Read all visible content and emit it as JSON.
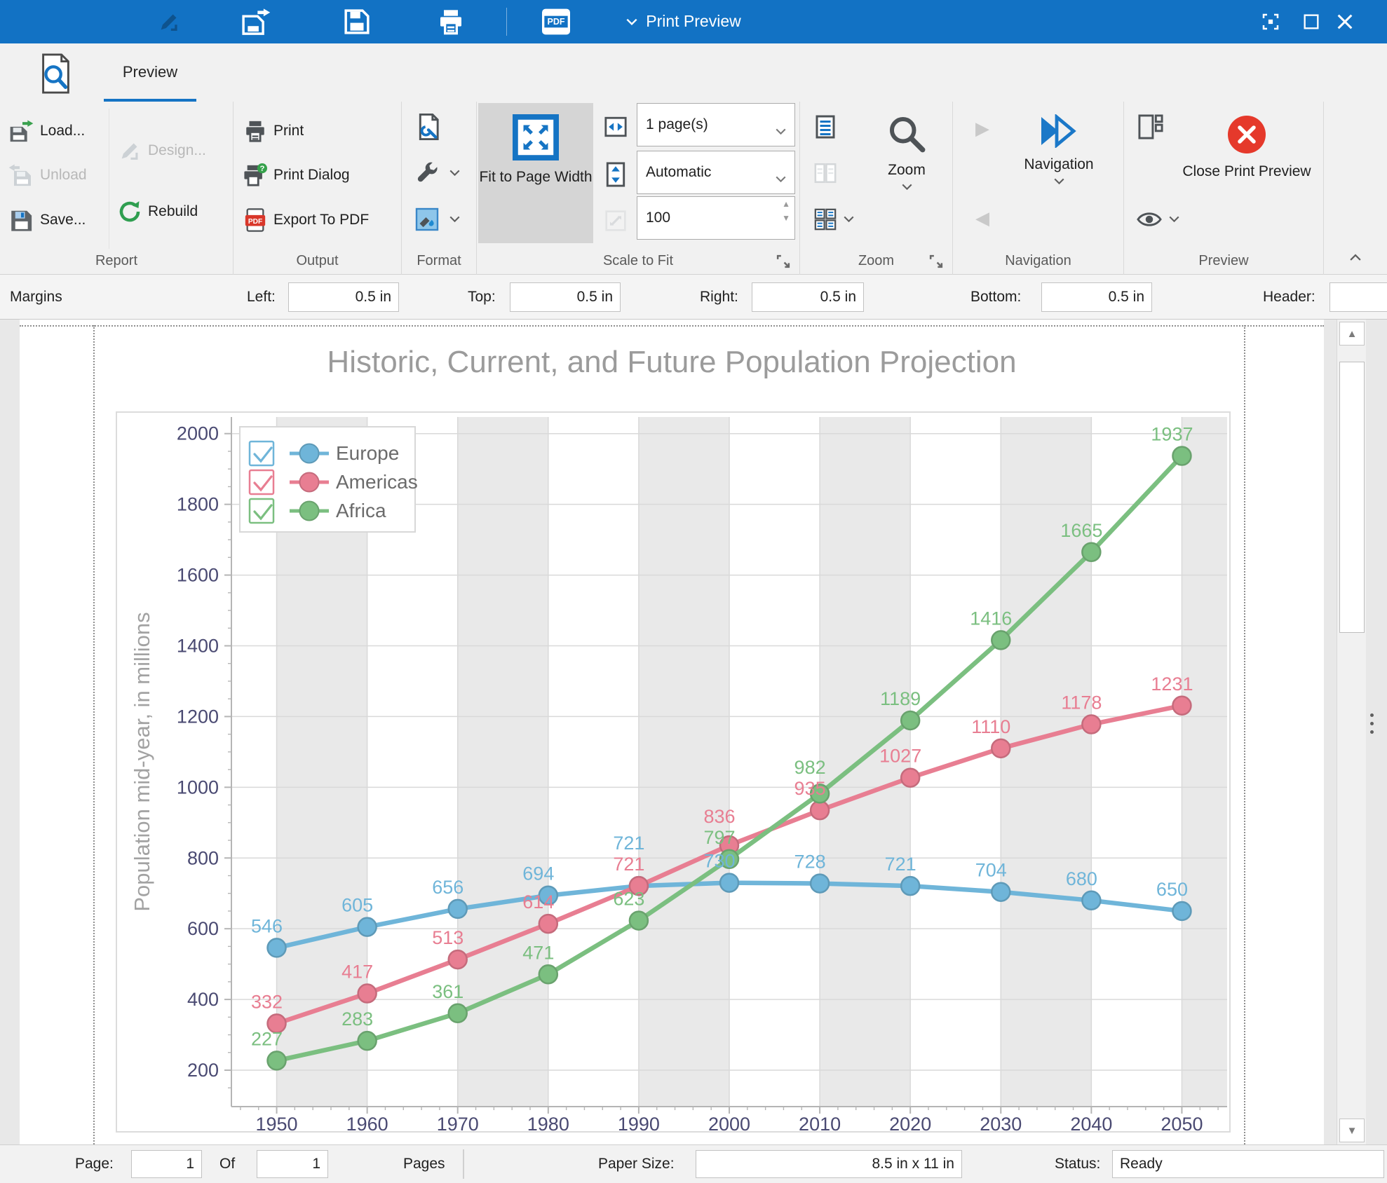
{
  "titlebar": {
    "title": "Print Preview"
  },
  "tabs": {
    "preview": "Preview"
  },
  "ribbon": {
    "report": {
      "label": "Report",
      "load": "Load...",
      "unload": "Unload",
      "save": "Save...",
      "design": "Design...",
      "rebuild": "Rebuild"
    },
    "output": {
      "label": "Output",
      "print": "Print",
      "print_dialog": "Print Dialog",
      "export_pdf": "Export To PDF"
    },
    "format": {
      "label": "Format"
    },
    "scale_to_fit": {
      "label": "Scale to Fit",
      "fit_button": "Fit to Page Width",
      "pages_value": "1 page(s)",
      "height_value": "Automatic",
      "zoom_value": "100"
    },
    "zoom": {
      "label": "Zoom",
      "zoom_button": "Zoom"
    },
    "navigation": {
      "label": "Navigation",
      "nav_button": "Navigation"
    },
    "preview": {
      "label": "Preview",
      "close_button": "Close Print Preview"
    }
  },
  "margins_bar": {
    "title": "Margins",
    "left_label": "Left:",
    "left_value": "0.5 in",
    "top_label": "Top:",
    "top_value": "0.5 in",
    "right_label": "Right:",
    "right_value": "0.5 in",
    "bottom_label": "Bottom:",
    "bottom_value": "0.5 in",
    "header_label": "Header:"
  },
  "status_bar": {
    "page_label": "Page:",
    "page_value": "1",
    "of_label": "Of",
    "of_value": "1",
    "pages_label": "Pages",
    "paper_label": "Paper Size:",
    "paper_value": "8.5 in x 11 in",
    "status_label": "Status:",
    "status_value": "Ready"
  },
  "icons": {
    "pdf_label": "PDF",
    "spin_up": "▲",
    "spin_down": "▼",
    "scroll_up": "▲",
    "scroll_down": "▼",
    "nav_next": "▶",
    "nav_prev": "◀"
  },
  "colors": {
    "titlebar_blue": "#1272c4",
    "accent_blue": "#1574c4",
    "close_red": "#e5392b",
    "active_button_bg": "#d5d5d5"
  },
  "chart_data": {
    "type": "line",
    "title": "Historic, Current, and Future Population Projection",
    "xlabel": "",
    "ylabel": "Population mid-year, in millions",
    "x": [
      1950,
      1960,
      1970,
      1980,
      1990,
      2000,
      2010,
      2020,
      2030,
      2040,
      2050
    ],
    "series": [
      {
        "name": "Europe",
        "color": "#6fb5d9",
        "values": [
          546,
          605,
          656,
          694,
          721,
          730,
          728,
          721,
          704,
          680,
          650
        ]
      },
      {
        "name": "Americas",
        "color": "#e87e92",
        "values": [
          332,
          417,
          513,
          614,
          721,
          836,
          935,
          1027,
          1110,
          1178,
          1231
        ]
      },
      {
        "name": "Africa",
        "color": "#7bbf80",
        "values": [
          227,
          283,
          361,
          471,
          623,
          797,
          982,
          1189,
          1416,
          1665,
          1937
        ]
      }
    ],
    "yticks": [
      200,
      400,
      600,
      800,
      1000,
      1200,
      1400,
      1600,
      1800,
      2000
    ],
    "ylim": [
      97,
      2047
    ],
    "xlim": [
      1945,
      2055
    ],
    "grid": true,
    "legend_position": "top-left",
    "band_decades": [
      1950,
      1970,
      1990,
      2010,
      2030,
      2050
    ],
    "point_labels": true
  }
}
